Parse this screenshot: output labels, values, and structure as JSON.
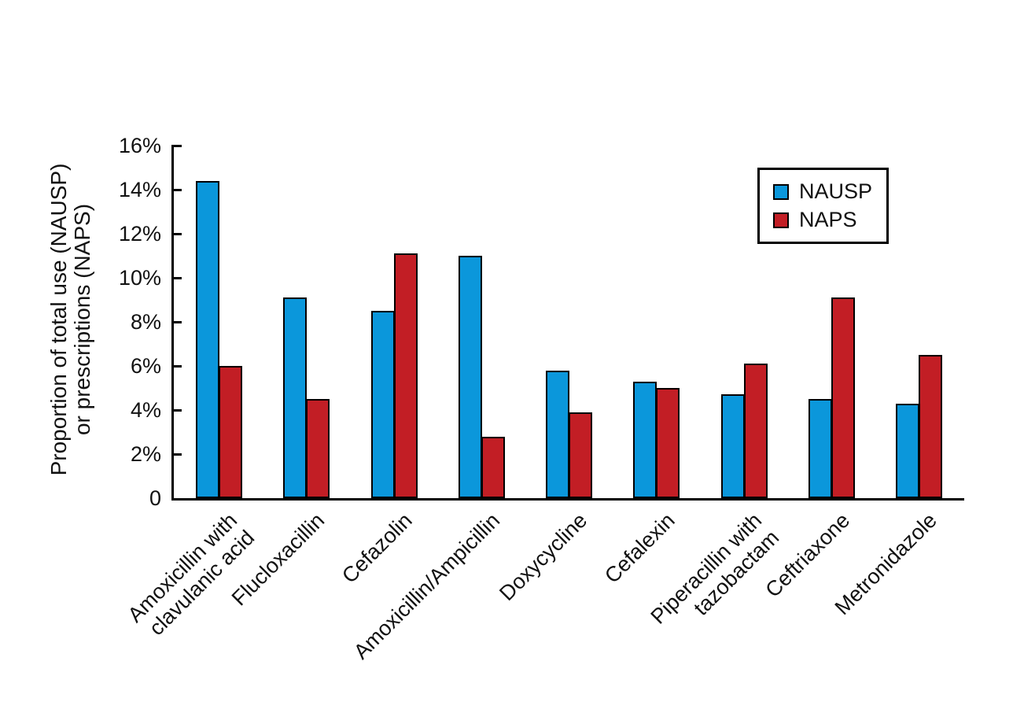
{
  "chart_data": {
    "type": "bar",
    "title": "",
    "categories": [
      "Amoxicillin with\nclavulanic acid",
      "Flucloxacillin",
      "Cefazolin",
      "Amoxicillin/Ampicillin",
      "Doxycycline",
      "Cefalexin",
      "Piperacillin with\ntazobactam",
      "Ceftriaxone",
      "Metronidazole"
    ],
    "series": [
      {
        "name": "NAUSP",
        "color": "#0B97DB",
        "values": [
          14.4,
          9.1,
          8.5,
          11.0,
          5.8,
          5.3,
          4.7,
          4.5,
          4.3
        ]
      },
      {
        "name": "NAPS",
        "color": "#C21E25",
        "values": [
          6.0,
          4.5,
          11.1,
          2.8,
          3.9,
          5.0,
          6.1,
          9.1,
          6.5
        ]
      }
    ],
    "ylabel_line1": "Proportion of total use (NAUSP)",
    "ylabel_line2": "or prescriptions (NAPS)",
    "xlabel": "",
    "yticks": [
      "16%",
      "14%",
      "12%",
      "10%",
      "8%",
      "6%",
      "4%",
      "2%",
      "0"
    ],
    "ylim": [
      0,
      16
    ],
    "ytick_step": 2,
    "grid": false,
    "legend_position": "top-right",
    "bar_border_color": "#000000",
    "axis_color": "#000000",
    "text_color": "#111111"
  }
}
